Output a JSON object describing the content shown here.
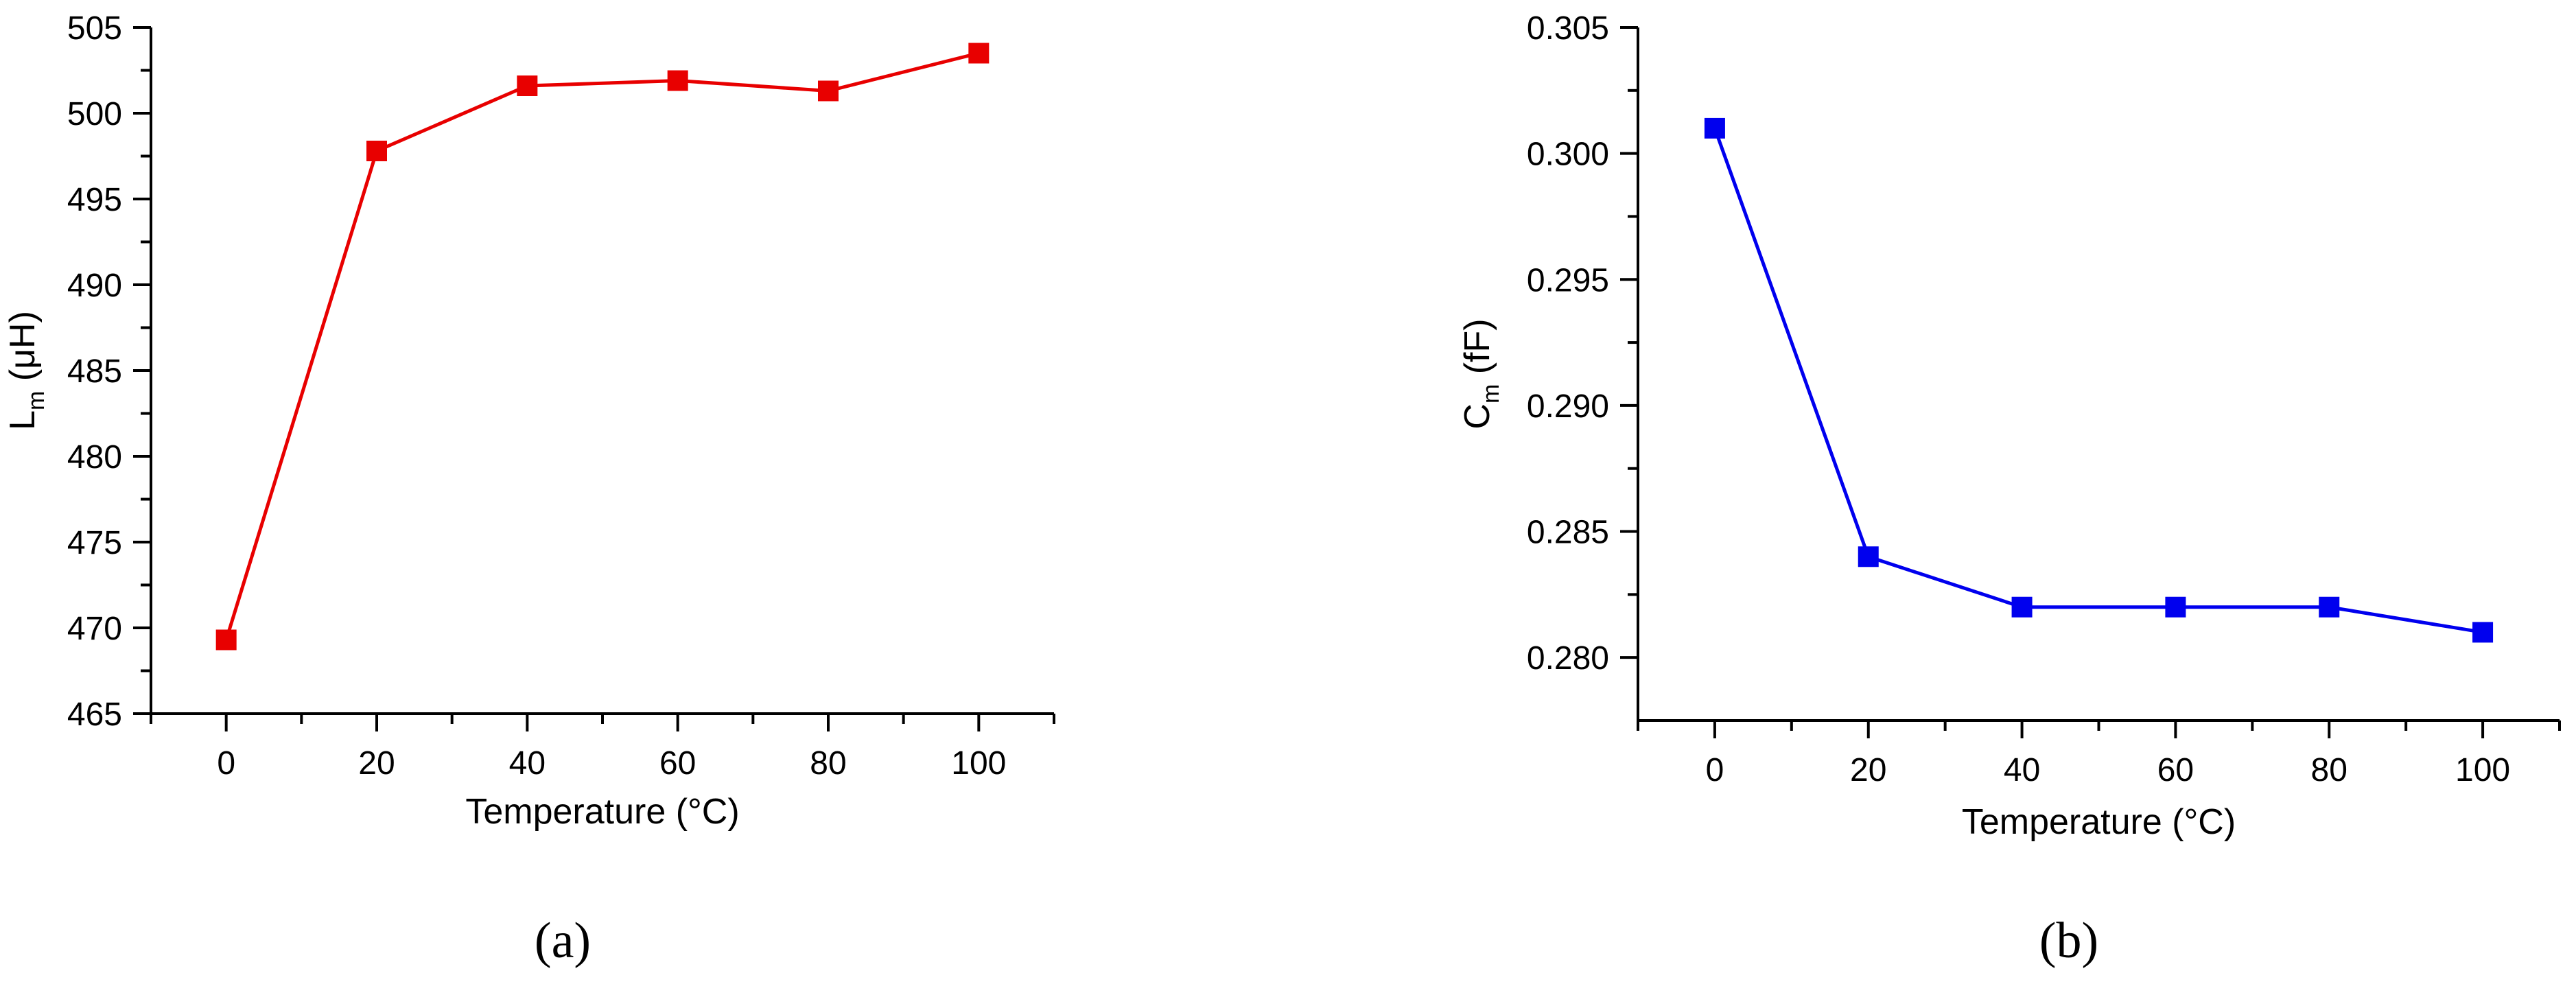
{
  "chart_data": [
    {
      "type": "line",
      "panel_label": "(a)",
      "xlabel": "Temperature (°C)",
      "ylabel": "L",
      "ylabel_sub": "m",
      "ylabel_unit": " (μH)",
      "xlim": [
        -10,
        110
      ],
      "ylim": [
        465,
        505
      ],
      "xticks": [
        0,
        20,
        40,
        60,
        80,
        100
      ],
      "yticks": [
        465,
        470,
        475,
        480,
        485,
        490,
        495,
        500,
        505
      ],
      "xtick_labels": [
        "0",
        "20",
        "40",
        "60",
        "80",
        "100"
      ],
      "ytick_labels": [
        "465",
        "470",
        "475",
        "480",
        "485",
        "490",
        "495",
        "500",
        "505"
      ],
      "color": "#e80000",
      "marker": "square",
      "series": [
        {
          "x": [
            0,
            20,
            40,
            60,
            80,
            100
          ],
          "y": [
            469.3,
            497.8,
            501.6,
            501.9,
            501.3,
            503.5
          ]
        }
      ]
    },
    {
      "type": "line",
      "panel_label": "(b)",
      "xlabel": "Temperature (°C)",
      "ylabel": "C",
      "ylabel_sub": "m",
      "ylabel_unit": " (fF)",
      "xlim": [
        -10,
        110
      ],
      "ylim": [
        0.2775,
        0.305
      ],
      "xticks": [
        0,
        20,
        40,
        60,
        80,
        100
      ],
      "yticks": [
        0.28,
        0.285,
        0.29,
        0.295,
        0.3,
        0.305
      ],
      "xtick_labels": [
        "0",
        "20",
        "40",
        "60",
        "80",
        "100"
      ],
      "ytick_labels": [
        "0.280",
        "0.285",
        "0.290",
        "0.295",
        "0.300",
        "0.305"
      ],
      "color": "#0000ee",
      "marker": "square",
      "series": [
        {
          "x": [
            0,
            20,
            40,
            60,
            80,
            100
          ],
          "y": [
            0.301,
            0.284,
            0.282,
            0.282,
            0.282,
            0.281
          ]
        }
      ]
    }
  ]
}
